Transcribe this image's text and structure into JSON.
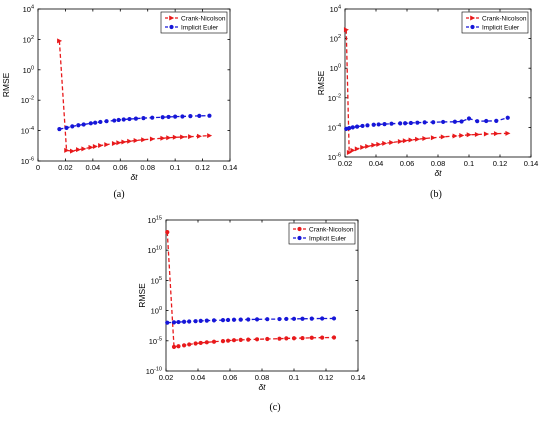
{
  "chart_data": [
    {
      "type": "line",
      "caption": "(a)",
      "xlabel": "δt",
      "ylabel": "RMSE",
      "xlim": [
        0,
        0.14
      ],
      "xticks": [
        "0",
        "0.02",
        "0.04",
        "0.06",
        "0.08",
        "0.1",
        "0.12",
        "0.14"
      ],
      "yscale": "log",
      "ylim_exp": [
        -6,
        4
      ],
      "yticks_exp": [
        "-6",
        "-4",
        "-2",
        "0",
        "2",
        "4"
      ],
      "legend_position": "top-right",
      "series": [
        {
          "name": "Crank-Nicolson",
          "color": "#e8191b",
          "marker": "triangle-right",
          "x": [
            0.0156,
            0.0208,
            0.025,
            0.0294,
            0.0333,
            0.0385,
            0.0417,
            0.0455,
            0.05,
            0.0556,
            0.0588,
            0.0625,
            0.0667,
            0.0714,
            0.0769,
            0.0833,
            0.0909,
            0.0952,
            0.1,
            0.1053,
            0.1111,
            0.1176,
            0.125
          ],
          "y_log10": [
            1.9,
            -5.3,
            -5.35,
            -5.25,
            -5.2,
            -5.1,
            -5.05,
            -4.98,
            -4.92,
            -4.85,
            -4.8,
            -4.75,
            -4.7,
            -4.65,
            -4.6,
            -4.55,
            -4.5,
            -4.47,
            -4.44,
            -4.42,
            -4.4,
            -4.37,
            -4.33
          ]
        },
        {
          "name": "Implicit Euler",
          "color": "#1616d8",
          "marker": "circle",
          "x": [
            0.0156,
            0.0208,
            0.025,
            0.0294,
            0.0333,
            0.0385,
            0.0417,
            0.0455,
            0.05,
            0.0556,
            0.0588,
            0.0625,
            0.0667,
            0.0714,
            0.0769,
            0.0833,
            0.0909,
            0.0952,
            0.1,
            0.1053,
            0.1111,
            0.1176,
            0.125
          ],
          "y_log10": [
            -3.9,
            -3.82,
            -3.72,
            -3.65,
            -3.6,
            -3.52,
            -3.48,
            -3.43,
            -3.38,
            -3.34,
            -3.3,
            -3.27,
            -3.24,
            -3.21,
            -3.18,
            -3.15,
            -3.12,
            -3.1,
            -3.08,
            -3.07,
            -3.05,
            -3.03,
            -3.02
          ]
        }
      ]
    },
    {
      "type": "line",
      "caption": "(b)",
      "xlabel": "δt",
      "ylabel": "RMSE",
      "xlim": [
        0.02,
        0.14
      ],
      "xticks": [
        "0.02",
        "0.04",
        "0.06",
        "0.08",
        "0.1",
        "0.12",
        "0.14"
      ],
      "yscale": "log",
      "ylim_exp": [
        -6,
        4
      ],
      "yticks_exp": [
        "-6",
        "-4",
        "-2",
        "0",
        "2",
        "4"
      ],
      "legend_position": "top-right",
      "series": [
        {
          "name": "Crank-Nicolson",
          "color": "#e8191b",
          "marker": "triangle-right",
          "x": [
            0.0208,
            0.0227,
            0.025,
            0.0278,
            0.0313,
            0.0345,
            0.0385,
            0.0417,
            0.0455,
            0.05,
            0.0556,
            0.0588,
            0.0625,
            0.0667,
            0.0714,
            0.0769,
            0.0833,
            0.0909,
            0.0952,
            0.1,
            0.1053,
            0.1111,
            0.1176,
            0.125
          ],
          "y_log10": [
            2.6,
            -5.7,
            -5.55,
            -5.45,
            -5.35,
            -5.28,
            -5.2,
            -5.15,
            -5.08,
            -5.02,
            -4.95,
            -4.9,
            -4.85,
            -4.8,
            -4.75,
            -4.7,
            -4.64,
            -4.58,
            -4.55,
            -4.5,
            -4.48,
            -4.45,
            -4.42,
            -4.4
          ]
        },
        {
          "name": "Implicit Euler",
          "color": "#1616d8",
          "marker": "circle",
          "x": [
            0.0208,
            0.0227,
            0.025,
            0.0278,
            0.0313,
            0.0345,
            0.0385,
            0.0417,
            0.0455,
            0.05,
            0.0556,
            0.0588,
            0.0625,
            0.0667,
            0.0714,
            0.0769,
            0.0833,
            0.0909,
            0.0952,
            0.1,
            0.1053,
            0.1111,
            0.1176,
            0.125
          ],
          "y_log10": [
            -4.1,
            -4.05,
            -4.0,
            -3.95,
            -3.9,
            -3.86,
            -3.82,
            -3.8,
            -3.78,
            -3.75,
            -3.73,
            -3.72,
            -3.7,
            -3.68,
            -3.66,
            -3.65,
            -3.63,
            -3.62,
            -3.6,
            -3.4,
            -3.58,
            -3.57,
            -3.56,
            -3.35
          ]
        }
      ]
    },
    {
      "type": "line",
      "caption": "(c)",
      "xlabel": "δt",
      "ylabel": "RMSE",
      "xlim": [
        0.02,
        0.14
      ],
      "xticks": [
        "0.02",
        "0.04",
        "0.06",
        "0.08",
        "0.1",
        "0.12",
        "0.14"
      ],
      "yscale": "log",
      "ylim_exp": [
        -10,
        15
      ],
      "yticks_exp": [
        "-10",
        "-5",
        "0",
        "5",
        "10",
        "15"
      ],
      "legend_position": "top-right",
      "series": [
        {
          "name": "Crank-Nicolson",
          "color": "#e8191b",
          "marker": "circle",
          "x": [
            0.0208,
            0.025,
            0.0278,
            0.0313,
            0.0345,
            0.0385,
            0.0417,
            0.0455,
            0.05,
            0.0556,
            0.0588,
            0.0625,
            0.0667,
            0.0714,
            0.0769,
            0.0833,
            0.0909,
            0.0952,
            0.1,
            0.1053,
            0.1111,
            0.1176,
            0.125
          ],
          "y_log10": [
            13.0,
            -6.0,
            -5.9,
            -5.75,
            -5.6,
            -5.45,
            -5.35,
            -5.25,
            -5.15,
            -5.05,
            -4.98,
            -4.9,
            -4.85,
            -4.8,
            -4.75,
            -4.7,
            -4.65,
            -4.6,
            -4.58,
            -4.55,
            -4.5,
            -4.48,
            -4.45
          ]
        },
        {
          "name": "Implicit Euler",
          "color": "#1616d8",
          "marker": "circle",
          "x": [
            0.0208,
            0.025,
            0.0278,
            0.0313,
            0.0345,
            0.0385,
            0.0417,
            0.0455,
            0.05,
            0.0556,
            0.0588,
            0.0625,
            0.0667,
            0.0714,
            0.0769,
            0.0833,
            0.0909,
            0.0952,
            0.1,
            0.1053,
            0.1111,
            0.1176,
            0.125
          ],
          "y_log10": [
            -2.0,
            -1.95,
            -1.9,
            -1.85,
            -1.8,
            -1.75,
            -1.7,
            -1.66,
            -1.62,
            -1.58,
            -1.55,
            -1.52,
            -1.5,
            -1.47,
            -1.45,
            -1.42,
            -1.4,
            -1.38,
            -1.36,
            -1.35,
            -1.33,
            -1.31,
            -1.3
          ]
        }
      ]
    }
  ]
}
